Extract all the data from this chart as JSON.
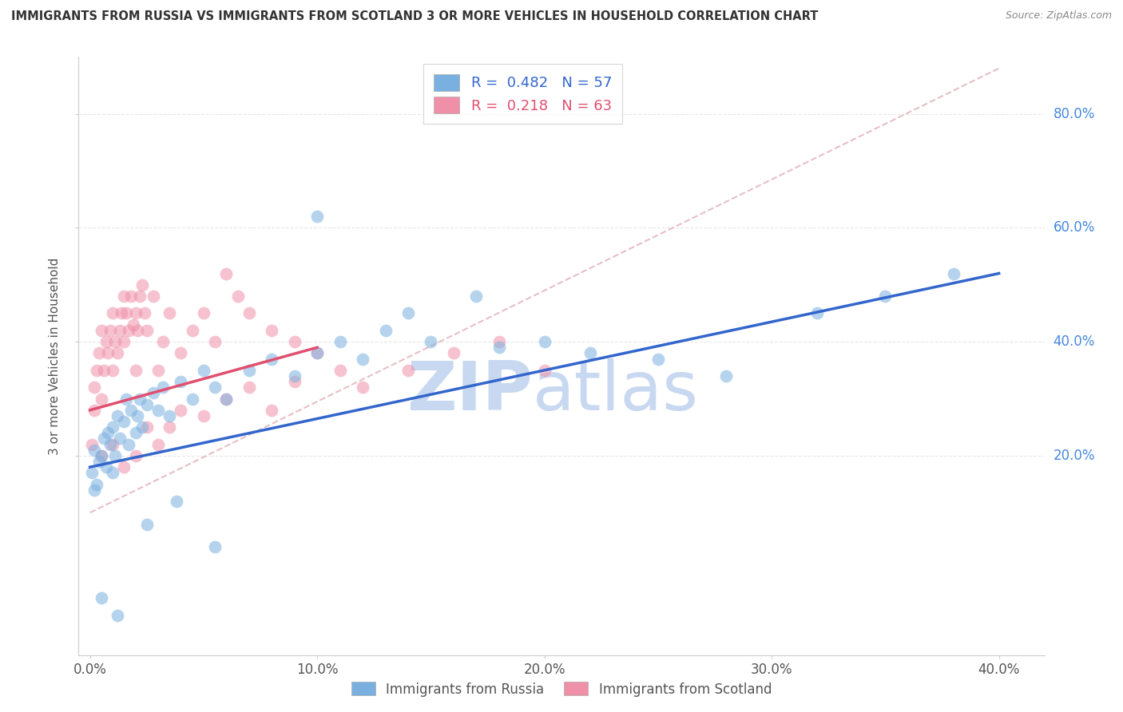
{
  "title": "IMMIGRANTS FROM RUSSIA VS IMMIGRANTS FROM SCOTLAND 3 OR MORE VEHICLES IN HOUSEHOLD CORRELATION CHART",
  "source": "Source: ZipAtlas.com",
  "ylabel": "3 or more Vehicles in Household",
  "x_tick_labels": [
    "0.0%",
    "10.0%",
    "20.0%",
    "30.0%",
    "40.0%"
  ],
  "x_tick_values": [
    0,
    10,
    20,
    30,
    40
  ],
  "y_tick_labels": [
    "20.0%",
    "40.0%",
    "60.0%",
    "80.0%"
  ],
  "y_tick_values": [
    20,
    40,
    60,
    80
  ],
  "xlim": [
    -0.5,
    42
  ],
  "ylim": [
    -15,
    90
  ],
  "legend_label_russia": "Immigrants from Russia",
  "legend_label_scotland": "Immigrants from Scotland",
  "color_russia": "#7ab0e0",
  "color_scotland": "#f090a8",
  "color_russia_line": "#3366cc",
  "color_scotland_line": "#e05070",
  "color_ref_line": "#e0b0b8",
  "watermark_zip": "ZIP",
  "watermark_atlas": "atlas",
  "watermark_color": "#c8d8f0",
  "background_color": "#ffffff",
  "grid_color": "#e8e8e8",
  "russia_scatter_x": [
    0.1,
    0.2,
    0.2,
    0.3,
    0.4,
    0.5,
    0.6,
    0.7,
    0.8,
    0.9,
    1.0,
    1.0,
    1.1,
    1.2,
    1.3,
    1.5,
    1.6,
    1.7,
    1.8,
    2.0,
    2.1,
    2.2,
    2.3,
    2.5,
    2.8,
    3.0,
    3.2,
    3.5,
    4.0,
    4.5,
    5.0,
    5.5,
    6.0,
    7.0,
    8.0,
    9.0,
    10.0,
    11.0,
    12.0,
    13.0,
    14.0,
    15.0,
    17.0,
    18.0,
    20.0,
    22.0,
    25.0,
    28.0,
    32.0,
    35.0,
    38.0,
    0.5,
    1.2,
    2.5,
    3.8,
    5.5,
    10.0
  ],
  "russia_scatter_y": [
    17,
    21,
    14,
    15,
    19,
    20,
    23,
    18,
    24,
    22,
    17,
    25,
    20,
    27,
    23,
    26,
    30,
    22,
    28,
    24,
    27,
    30,
    25,
    29,
    31,
    28,
    32,
    27,
    33,
    30,
    35,
    32,
    30,
    35,
    37,
    34,
    38,
    40,
    37,
    42,
    45,
    40,
    48,
    39,
    40,
    38,
    37,
    34,
    45,
    48,
    52,
    -5,
    -8,
    8,
    12,
    4,
    62
  ],
  "scotland_scatter_x": [
    0.1,
    0.2,
    0.2,
    0.3,
    0.4,
    0.5,
    0.5,
    0.6,
    0.7,
    0.8,
    0.9,
    1.0,
    1.0,
    1.1,
    1.2,
    1.3,
    1.4,
    1.5,
    1.5,
    1.6,
    1.7,
    1.8,
    1.9,
    2.0,
    2.0,
    2.1,
    2.2,
    2.3,
    2.4,
    2.5,
    2.8,
    3.0,
    3.2,
    3.5,
    4.0,
    4.5,
    5.0,
    5.5,
    6.0,
    6.5,
    7.0,
    8.0,
    9.0,
    10.0,
    11.0,
    12.0,
    14.0,
    16.0,
    18.0,
    20.0,
    0.5,
    1.0,
    1.5,
    2.0,
    2.5,
    3.0,
    3.5,
    4.0,
    5.0,
    6.0,
    7.0,
    8.0,
    9.0
  ],
  "scotland_scatter_y": [
    22,
    28,
    32,
    35,
    38,
    30,
    42,
    35,
    40,
    38,
    42,
    35,
    45,
    40,
    38,
    42,
    45,
    40,
    48,
    45,
    42,
    48,
    43,
    45,
    35,
    42,
    48,
    50,
    45,
    42,
    48,
    35,
    40,
    45,
    38,
    42,
    45,
    40,
    52,
    48,
    45,
    42,
    40,
    38,
    35,
    32,
    35,
    38,
    40,
    35,
    20,
    22,
    18,
    20,
    25,
    22,
    25,
    28,
    27,
    30,
    32,
    28,
    33
  ],
  "russia_line_x": [
    0,
    40
  ],
  "russia_line_y": [
    18.0,
    52.0
  ],
  "scotland_line_x": [
    0,
    10
  ],
  "scotland_line_y": [
    28.0,
    39.0
  ],
  "ref_line_x": [
    0,
    40
  ],
  "ref_line_y": [
    10,
    88
  ]
}
